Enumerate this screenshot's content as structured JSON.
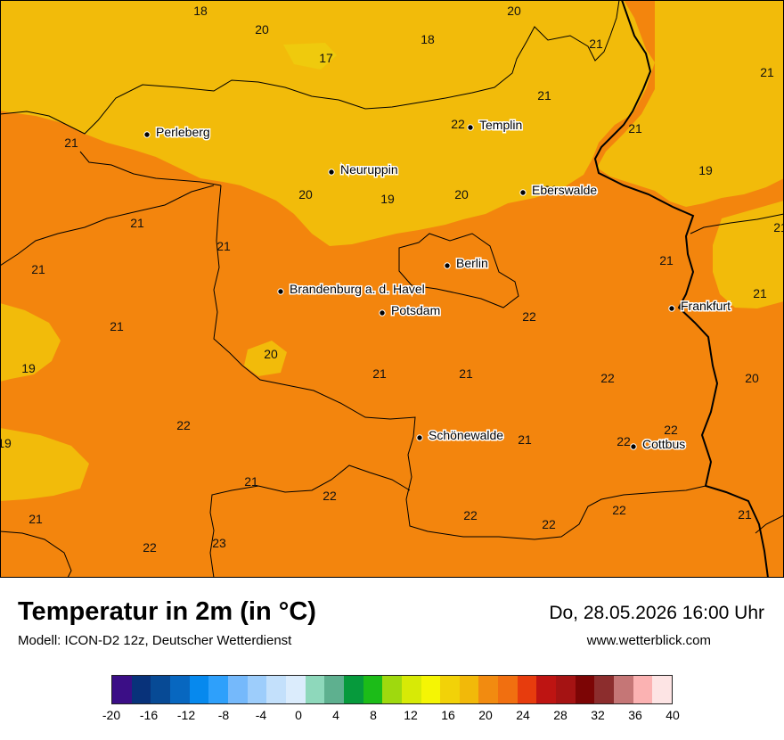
{
  "map": {
    "colors": {
      "warm": "#f3850d",
      "mild": "#f2bb0a",
      "mild_light": "#efca0d",
      "border": "#000000",
      "city_dot": "#000000"
    },
    "cities": [
      {
        "name": "Perleberg"
      },
      {
        "name": "Templin"
      },
      {
        "name": "Neuruppin"
      },
      {
        "name": "Eberswalde"
      },
      {
        "name": "Berlin"
      },
      {
        "name": "Brandenburg a. d. Havel"
      },
      {
        "name": "Potsdam"
      },
      {
        "name": "Frankfurt"
      },
      {
        "name": "Schönewalde"
      },
      {
        "name": "Cottbus"
      }
    ],
    "values": [
      "18",
      "20",
      "17",
      "18",
      "20",
      "21",
      "21",
      "21",
      "21",
      "21",
      "20",
      "19",
      "20",
      "21",
      "21",
      "21",
      "21",
      "21",
      "21",
      "19",
      "21",
      "21",
      "22",
      "19",
      "21",
      "20",
      "21",
      "22",
      "20",
      "22",
      "19",
      "21",
      "21",
      "22",
      "22",
      "22",
      "21",
      "22",
      "23",
      "22",
      "22",
      "21",
      "22",
      "22",
      "22"
    ]
  },
  "footer": {
    "title": "Temperatur in 2m (in °C)",
    "subtitle": "Modell: ICON-D2 12z, Deutscher Wetterdienst",
    "date": "Do, 28.05.2026 16:00 Uhr",
    "site": "www.wetterblick.com"
  },
  "legend": {
    "colors": [
      "#3b0e86",
      "#08327a",
      "#074a95",
      "#0767c0",
      "#0689ee",
      "#2ea0fb",
      "#75b9fb",
      "#9dcdfb",
      "#c3e0fb",
      "#dbecfc",
      "#8ed8bb",
      "#5eb08f",
      "#069a3c",
      "#1cbc18",
      "#9fd90e",
      "#d7ea06",
      "#f5f504",
      "#f2d208",
      "#f2b909",
      "#f28b10",
      "#f16f10",
      "#e73c0d",
      "#be1412",
      "#a51313",
      "#7c0505",
      "#8c2d2d",
      "#c57676",
      "#fbb2b2",
      "#fde4e4"
    ],
    "ticks": [
      "-20",
      "-16",
      "-12",
      "-8",
      "-4",
      "0",
      "4",
      "8",
      "12",
      "16",
      "20",
      "24",
      "28",
      "32",
      "36",
      "40"
    ]
  }
}
